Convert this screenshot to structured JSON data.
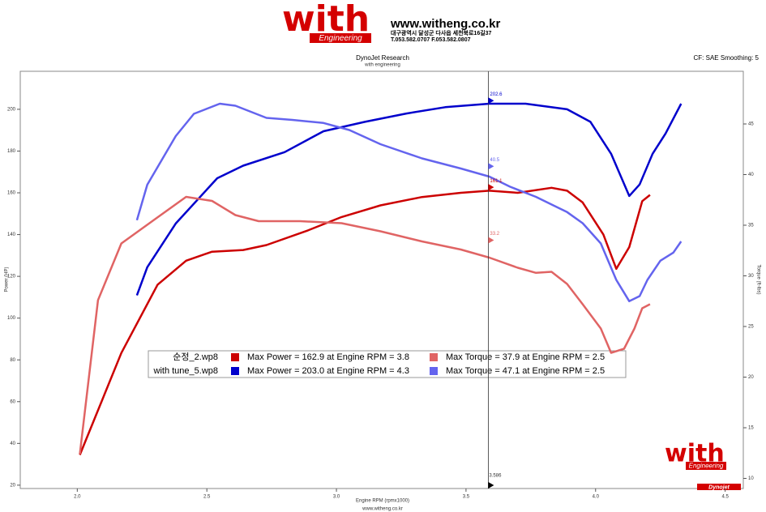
{
  "header": {
    "logo": "with",
    "logo_sub": "Engineering",
    "url": "www.witheng.co.kr",
    "address": "대구광역시 달성군 다사읍 세천북로16길37",
    "phone": "T.053.582.0707 F.053.582.0807"
  },
  "footer": {
    "url": "www.witheng.co.kr",
    "logo": "with",
    "logo_sub": "Engineering",
    "brand": "Dynojet"
  },
  "chart_data": {
    "type": "line",
    "title": "DynoJet Research",
    "subtitle": "with engineering",
    "settings_text": "CF: SAE Smoothing: 5",
    "x_label": "Engine RPM (rpmx1000)",
    "y_label": "Power (HP)",
    "y2_label": "Torque (ft-lbs)",
    "xlim": [
      1.78,
      4.57
    ],
    "ylim": [
      18.4,
      218.2
    ],
    "y2lim": [
      9,
      50.2
    ],
    "xticks": [
      {
        "value": 2,
        "label": "2.0"
      },
      {
        "value": 2.5,
        "label": "2.5"
      },
      {
        "value": 3,
        "label": "3.0"
      },
      {
        "value": 3.5,
        "label": "3.5"
      },
      {
        "value": 4,
        "label": "4.0"
      },
      {
        "value": 4.5,
        "label": "4.5"
      }
    ],
    "yticks": [
      20,
      40,
      60,
      80,
      100,
      120,
      140,
      160,
      180,
      200
    ],
    "y2ticks": [
      10,
      15,
      20,
      25,
      30,
      35,
      40,
      45
    ],
    "files": [
      "순정_2.wp8",
      "with tune_5.wp8"
    ],
    "series": [
      {
        "name": "Max Power = 162.9 at Engine RPM = 3.8",
        "color": "#cc0000",
        "axis": "y",
        "x": [
          2.01,
          2.17,
          2.31,
          2.42,
          2.52,
          2.64,
          2.73,
          2.89,
          3.02,
          3.17,
          3.33,
          3.48,
          3.59,
          3.7,
          3.83,
          3.89,
          3.95,
          4.03,
          4.08,
          4.13,
          4.18,
          4.21
        ],
        "values": [
          34.5,
          83.3,
          116,
          127.5,
          131.8,
          132.6,
          135,
          142,
          148.4,
          154,
          158,
          160,
          161,
          160,
          162.4,
          161,
          155.4,
          140,
          123.6,
          134,
          156,
          159
        ]
      },
      {
        "name": "Max Power = 203.0 at Engine RPM = 4.3",
        "color": "#0000cc",
        "axis": "y",
        "x": [
          2.23,
          2.27,
          2.38,
          2.54,
          2.64,
          2.8,
          2.95,
          3.11,
          3.27,
          3.42,
          3.59,
          3.73,
          3.89,
          3.98,
          4.06,
          4.13,
          4.17,
          4.22,
          4.27,
          4.33
        ],
        "values": [
          110.9,
          124.4,
          145.3,
          167,
          173,
          179.5,
          189.5,
          194,
          198,
          201,
          202.7,
          202.7,
          200,
          194,
          178.7,
          158.5,
          164,
          178.7,
          188.4,
          202.7
        ]
      },
      {
        "name": "Max Torque = 37.9 at Engine RPM = 2.5",
        "color": "#e06464",
        "axis": "y2",
        "x": [
          2.01,
          2.08,
          2.17,
          2.3,
          2.42,
          2.52,
          2.61,
          2.7,
          2.86,
          3.02,
          3.17,
          3.33,
          3.48,
          3.59,
          3.7,
          3.77,
          3.83,
          3.89,
          3.95,
          4.02,
          4.06,
          4.11,
          4.15,
          4.18,
          4.21
        ],
        "values": [
          12.4,
          27.6,
          33.2,
          35.6,
          37.8,
          37.4,
          36,
          35.4,
          35.4,
          35.2,
          34.4,
          33.4,
          32.6,
          31.8,
          30.8,
          30.3,
          30.4,
          29.2,
          27.2,
          24.8,
          22.4,
          22.8,
          24.8,
          26.8,
          27.2
        ]
      },
      {
        "name": "Max Torque = 47.1 at Engine RPM = 2.5",
        "color": "#6464ee",
        "axis": "y2",
        "x": [
          2.23,
          2.27,
          2.38,
          2.45,
          2.55,
          2.61,
          2.73,
          2.83,
          2.95,
          3.05,
          3.17,
          3.33,
          3.48,
          3.59,
          3.67,
          3.77,
          3.89,
          3.95,
          4.02,
          4.08,
          4.13,
          4.17,
          4.2,
          4.25,
          4.3,
          4.33
        ],
        "values": [
          35.5,
          39,
          43.8,
          46,
          47,
          46.8,
          45.6,
          45.4,
          45.1,
          44.4,
          43,
          41.6,
          40.6,
          39.8,
          38.8,
          37.8,
          36.3,
          35.2,
          33.2,
          29.6,
          27.5,
          28,
          29.6,
          31.5,
          32.3,
          33.4
        ]
      }
    ],
    "cursor": {
      "x": 3.586,
      "labels": [
        {
          "value": 202.6,
          "axis": "y",
          "color": "#0000cc"
        },
        {
          "value": 40.5,
          "axis": "y2",
          "color": "#6464ee"
        },
        {
          "value": 161.1,
          "axis": "y",
          "color": "#cc0000"
        },
        {
          "value": 33.2,
          "axis": "y2",
          "color": "#e06464"
        }
      ]
    }
  }
}
